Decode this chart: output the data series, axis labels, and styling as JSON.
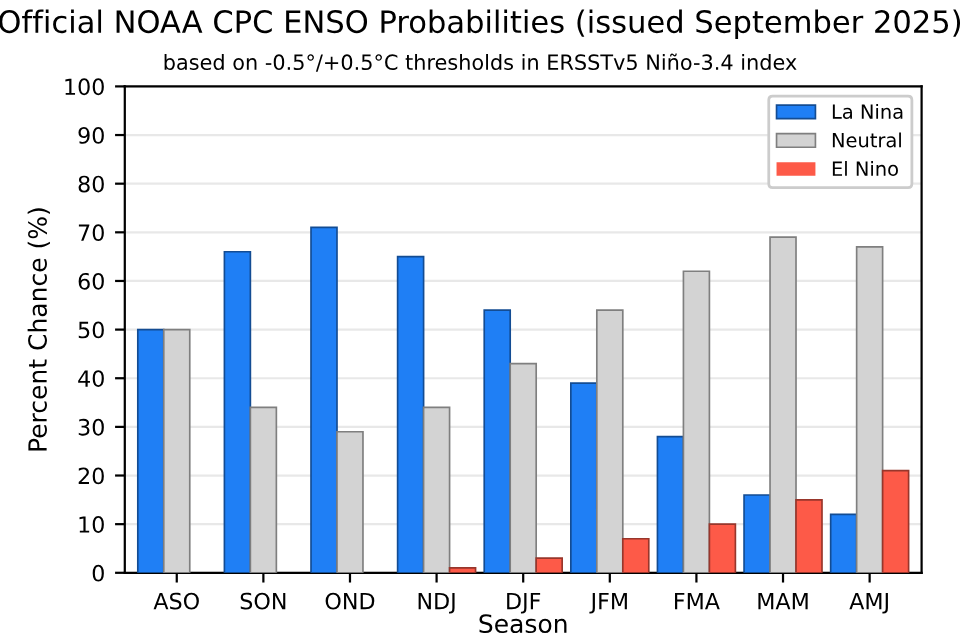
{
  "chart_data": {
    "type": "bar",
    "title": "Official NOAA CPC ENSO Probabilities (issued September 2025)",
    "subtitle": "based on -0.5°/+0.5°C thresholds in ERSSTv5 Niño-3.4 index",
    "xlabel": "Season",
    "ylabel": "Percent Chance (%)",
    "categories": [
      "ASO",
      "SON",
      "OND",
      "NDJ",
      "DJF",
      "JFM",
      "FMA",
      "MAM",
      "AMJ"
    ],
    "series": [
      {
        "name": "La Nina",
        "color": "#1f7ff5",
        "values": [
          50,
          66,
          71,
          65,
          54,
          39,
          28,
          16,
          12
        ]
      },
      {
        "name": "Neutral",
        "color": "#d3d3d3",
        "values": [
          50,
          34,
          29,
          34,
          43,
          54,
          62,
          69,
          67
        ]
      },
      {
        "name": "El Nino",
        "color": "#fd5a48",
        "values": [
          0,
          0,
          0,
          1,
          3,
          7,
          10,
          15,
          21
        ]
      }
    ],
    "ylim": [
      0,
      100
    ],
    "yticks": [
      0,
      10,
      20,
      30,
      40,
      50,
      60,
      70,
      80,
      90,
      100
    ],
    "grid": "y",
    "legend": "top right"
  }
}
